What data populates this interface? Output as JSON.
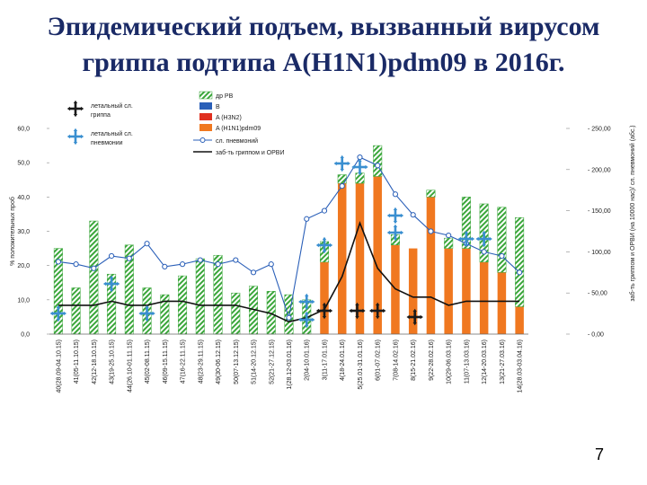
{
  "slide": {
    "title_line1": "Эпидемический подъем, вызванный вирусом",
    "title_line2": "гриппа подтипа A(H1N1)pdm09 в 2016г.",
    "page_number": "7"
  },
  "chart_data": {
    "type": "bar",
    "ylabel_left": "% положительных проб",
    "ylabel_right": "заб-ть гриппом и ОРВИ (на 10000 нас)/ сл. пневмоний (абс.)",
    "ylim_left": [
      0,
      60
    ],
    "ylim_right": [
      0,
      250
    ],
    "left_ticks": [
      "0,0",
      "10,0",
      "20,0",
      "30,0",
      "40,0",
      "50,0",
      "60,0"
    ],
    "right_ticks": [
      "0,00",
      "50,00",
      "100,00",
      "150,00",
      "200,00",
      "250,00"
    ],
    "categories": [
      "40(28.09-04.10.15)",
      "41(05-11.10.15)",
      "42(12-18.10.15)",
      "43(19-25.10.15)",
      "44(26.10-01.11.15)",
      "45(02-08.11.15)",
      "46(09-15.11.15)",
      "47(16-22.11.15)",
      "48(23-29.11.15)",
      "49(30-06.12.15)",
      "50(07-13.12.15)",
      "51(14-20.12.15)",
      "52(21-27.12.15)",
      "1(28.12-03.01.16)",
      "2(04-10.01.16)",
      "3(11-17.01.16)",
      "4(18-24.01.16)",
      "5(25.01-31.01.16)",
      "6(01-07.02.16)",
      "7(08-14.02.16)",
      "8(15-21.02.16)",
      "9(22-28.02.16)",
      "10(29-06.03.16)",
      "11(07-13.03.16)",
      "12(14-20.03.16)",
      "13(21-27.03.16)",
      "14(28.03-03.04.16)"
    ],
    "legend": {
      "icon_lethal_flu": "летальный сл. гриппа",
      "icon_lethal_pneumonia": "летальный сл. пневмонии",
      "series_other_rv": "др РВ",
      "series_b": "B",
      "series_h3n2": "A (H3N2)",
      "series_h1n1": "A (H1N1)pdm09",
      "line_pneumonia": "сл. пневмоний",
      "line_flu_orvi": "заб-ть гриппом и ОРВИ"
    },
    "series": [
      {
        "name": "др РВ",
        "axis": "left",
        "values": [
          25,
          13.5,
          33,
          17.5,
          26,
          13.5,
          11.5,
          17,
          22,
          23,
          12,
          14,
          12.5,
          11.5,
          10,
          6,
          2.5,
          3,
          9,
          3,
          0,
          2,
          3,
          15,
          17,
          19,
          26
        ]
      },
      {
        "name": "B",
        "axis": "left",
        "values": [
          0,
          0,
          0,
          0,
          0,
          0,
          0,
          0,
          0,
          0,
          0,
          0,
          0,
          0,
          0,
          0,
          0,
          0,
          0,
          0,
          0,
          0,
          0,
          0,
          0,
          0,
          0
        ]
      },
      {
        "name": "A (H3N2)",
        "axis": "left",
        "values": [
          0,
          0,
          0,
          0,
          0,
          0,
          0,
          0,
          0,
          0,
          0,
          0,
          0,
          0,
          0,
          0,
          0,
          0,
          0,
          0,
          0,
          0,
          0,
          0,
          0,
          0,
          0
        ]
      },
      {
        "name": "A (H1N1)pdm09",
        "axis": "left",
        "values": [
          0,
          0,
          0,
          0,
          0,
          0,
          0,
          0,
          0,
          0,
          0,
          0,
          0,
          0,
          0,
          21,
          44,
          44,
          46,
          26,
          25,
          40,
          25,
          25,
          21,
          18,
          8
        ]
      },
      {
        "name": "сл. пневмоний",
        "axis": "right",
        "values": [
          88,
          85,
          80,
          95,
          92,
          110,
          82,
          85,
          90,
          85,
          90,
          75,
          85,
          20,
          140,
          150,
          180,
          215,
          205,
          170,
          145,
          125,
          120,
          110,
          100,
          95,
          75
        ]
      },
      {
        "name": "заб-ть гриппом и ОРВИ",
        "axis": "right",
        "values": [
          35,
          35,
          35,
          40,
          35,
          35,
          40,
          40,
          35,
          35,
          35,
          30,
          25,
          15,
          20,
          30,
          70,
          135,
          80,
          55,
          45,
          45,
          35,
          40,
          40,
          40,
          40
        ]
      }
    ],
    "lethal_flu_markers_at": [
      "3(11-17.01.16)",
      "5(25.01-31.01.16)",
      "6(01-07.02.16)",
      "8(15-21.02.16)"
    ],
    "lethal_pneumonia_markers_at": [
      "40(28.09-04.10.15)",
      "43(19-25.10.15)",
      "45(02-08.11.15)",
      "2(04-10.01.16)",
      "2(04-10.01.16)",
      "3(11-17.01.16)",
      "4(18-24.01.16)",
      "5(25.01-31.01.16)",
      "7(08-14.02.16)",
      "7(08-14.02.16)",
      "11(07-13.03.16)",
      "12(14-20.03.16)"
    ],
    "colors": {
      "h1n1": "#f07820",
      "other_rv_stripe": "#3aa63a",
      "b": "#2a5fb8",
      "h3n2": "#e03020",
      "pneumonia_line": "#2a5fb8",
      "flu_line": "#111111",
      "lethal_flu_marker": "#1a1a1a",
      "lethal_pneumonia_marker": "#3a8fd0"
    }
  }
}
